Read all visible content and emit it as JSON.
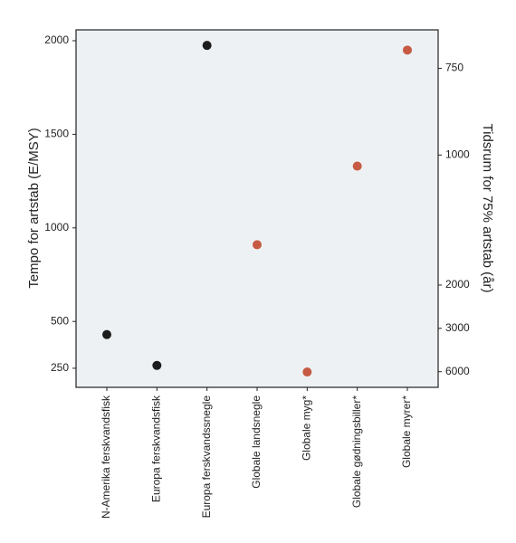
{
  "chart_data": {
    "type": "scatter",
    "categories": [
      "N-Amerika ferskvandsfisk",
      "Europa ferskvandsfisk",
      "Europa ferskvandssnegle",
      "Globale landsnegle",
      "Globale myg*",
      "Globale gødningsbiller*",
      "Globale myrer*"
    ],
    "values": [
      430,
      265,
      1975,
      910,
      230,
      1330,
      1950
    ],
    "colors": [
      "#1c1c1c",
      "#1c1c1c",
      "#1c1c1c",
      "#c65a43",
      "#c65a43",
      "#c65a43",
      "#c65a43"
    ],
    "ylabel": "Tempo for artstab (E/MSY)",
    "y2label": "Tidsrum for 75% artstab (år)",
    "ylim": [
      148,
      2058
    ],
    "yticks": [
      250,
      500,
      1000,
      1500,
      2000
    ],
    "y2lim": [
      675,
      9390
    ],
    "y2scale": "reciprocal",
    "y2ticks": [
      750,
      1000,
      2000,
      3000,
      6000
    ],
    "background": "#edf1f4"
  }
}
